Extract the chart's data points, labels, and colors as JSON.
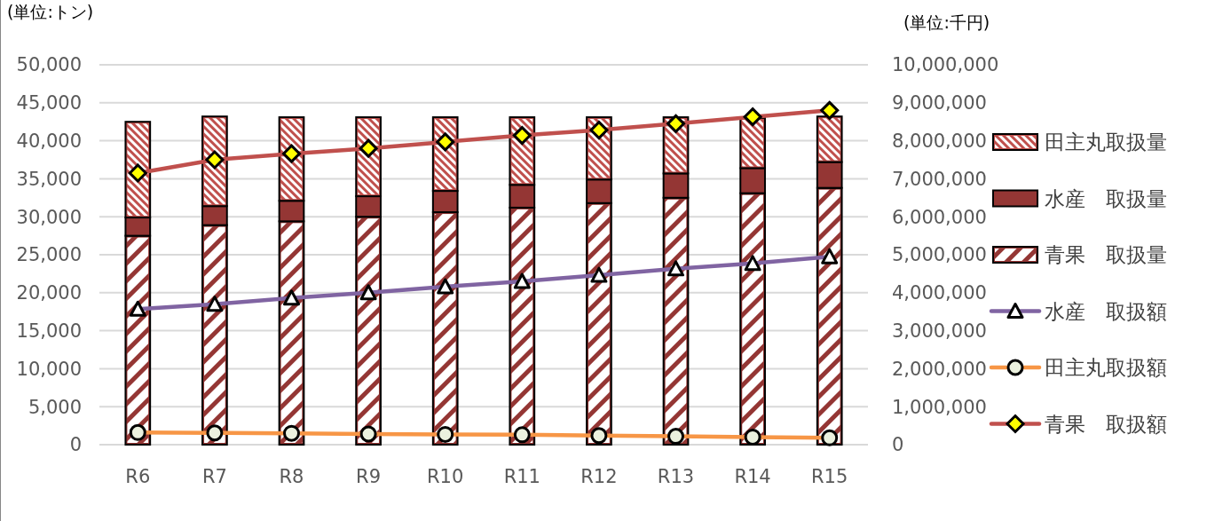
{
  "chart_data": {
    "type": "bar",
    "stacked": true,
    "ylabel": "(単位:トン)",
    "y2label": "(単位:千円)",
    "categories": [
      "R6",
      "R7",
      "R8",
      "R9",
      "R10",
      "R11",
      "R12",
      "R13",
      "R14",
      "R15"
    ],
    "ylim": [
      0,
      50000
    ],
    "yticks": [
      {
        "value": 0,
        "label": "0"
      },
      {
        "value": 5000,
        "label": "5,000"
      },
      {
        "value": 10000,
        "label": "10,000"
      },
      {
        "value": 15000,
        "label": "15,000"
      },
      {
        "value": 20000,
        "label": "20,000"
      },
      {
        "value": 25000,
        "label": "25,000"
      },
      {
        "value": 30000,
        "label": "30,000"
      },
      {
        "value": 35000,
        "label": "35,000"
      },
      {
        "value": 40000,
        "label": "40,000"
      },
      {
        "value": 45000,
        "label": "45,000"
      },
      {
        "value": 50000,
        "label": "50,000"
      }
    ],
    "y2lim": [
      0,
      10000000
    ],
    "y2ticks": [
      {
        "value": 0,
        "label": "0"
      },
      {
        "value": 1000000,
        "label": "1,000,000"
      },
      {
        "value": 2000000,
        "label": "2,000,000"
      },
      {
        "value": 3000000,
        "label": "3,000,000"
      },
      {
        "value": 4000000,
        "label": "4,000,000"
      },
      {
        "value": 5000000,
        "label": "5,000,000"
      },
      {
        "value": 6000000,
        "label": "6,000,000"
      },
      {
        "value": 7000000,
        "label": "7,000,000"
      },
      {
        "value": 8000000,
        "label": "8,000,000"
      },
      {
        "value": 9000000,
        "label": "9,000,000"
      },
      {
        "value": 10000000,
        "label": "10,000,000"
      }
    ],
    "grid": "y",
    "legend": "right",
    "series": [
      {
        "name": "青果　取扱量",
        "color": "#943634",
        "values": [
          27500,
          28900,
          29400,
          30000,
          30600,
          31200,
          31800,
          32500,
          33100,
          33800
        ]
      },
      {
        "name": "水産　取扱量",
        "color": "#943634",
        "values": [
          2400,
          2500,
          2700,
          2700,
          2800,
          3000,
          3100,
          3200,
          3300,
          3400
        ]
      },
      {
        "name": "田主丸取扱量",
        "color": "#c0504d",
        "values": [
          12600,
          11800,
          11000,
          10400,
          9700,
          8900,
          8200,
          7400,
          6600,
          6000
        ]
      },
      {
        "name": "水産　取扱額",
        "type": "line",
        "axis": "y2",
        "marker": "triangle",
        "color": "#8064a2",
        "values": [
          3570000,
          3700000,
          3860000,
          4000000,
          4160000,
          4300000,
          4460000,
          4630000,
          4770000,
          4950000
        ]
      },
      {
        "name": "田主丸取扱額",
        "type": "line",
        "axis": "y2",
        "marker": "circle",
        "color": "#f79646",
        "values": [
          320000,
          310000,
          300000,
          280000,
          270000,
          260000,
          240000,
          220000,
          200000,
          180000
        ]
      },
      {
        "name": "青果　取扱額",
        "type": "line",
        "axis": "y2",
        "marker": "diamond",
        "color": "#c0504d",
        "values": [
          7150000,
          7500000,
          7660000,
          7800000,
          7970000,
          8140000,
          8280000,
          8450000,
          8630000,
          8800000
        ]
      }
    ]
  }
}
